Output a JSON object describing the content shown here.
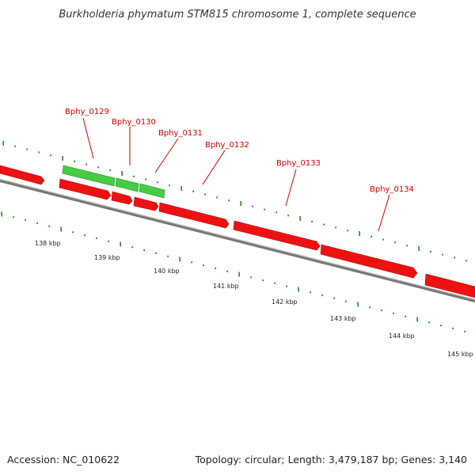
{
  "title": "Burkholderia phymatum STM815 chromosome 1, complete sequence",
  "footer": {
    "accession": "Accession: NC_010622",
    "summary": "Topology: circular; Length: 3,479,187 bp; Genes: 3,140"
  },
  "colors": {
    "forward_gene": "#44cc44",
    "reverse_gene": "#ee1111",
    "backbone": "#888888",
    "ticks": "#228822",
    "label": "#cc0000"
  },
  "gene_labels": [
    "Bphy_0129",
    "Bphy_0130",
    "Bphy_0131",
    "Bphy_0132",
    "Bphy_0133",
    "Bphy_0134"
  ],
  "tick_labels": [
    "138 kbp",
    "139 kbp",
    "140 kbp",
    "141 kbp",
    "142 kbp",
    "143 kbp",
    "144 kbp",
    "145 kbp"
  ]
}
